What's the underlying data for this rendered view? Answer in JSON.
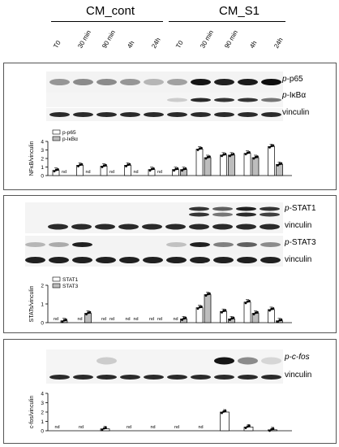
{
  "header": {
    "group_control": "CM_cont",
    "group_s1": "CM_S1",
    "timepoints": [
      "T0",
      "30 min",
      "90 min",
      "4h",
      "24h",
      "T0",
      "30 min",
      "90 min",
      "4h",
      "24h"
    ]
  },
  "panel1": {
    "labels": [
      {
        "prefix": "p-",
        "name": "p65"
      },
      {
        "prefix": "p-",
        "name": "IκBα"
      },
      {
        "prefix": "",
        "name": "vinculin"
      }
    ]
  },
  "panel2": {
    "labels": [
      {
        "prefix": "p-",
        "name": "STAT1"
      },
      {
        "prefix": "",
        "name": "vinculin"
      },
      {
        "prefix": "p-",
        "name": "STAT3"
      },
      {
        "prefix": "",
        "name": "vinculin"
      }
    ]
  },
  "panel3": {
    "labels": [
      {
        "prefix": "p-",
        "name": "c-fos"
      },
      {
        "prefix": "",
        "name": "vinculin"
      }
    ]
  },
  "chart_data": [
    {
      "type": "bar",
      "ylabel": "NFκB/vinculin",
      "ylim": [
        0,
        4
      ],
      "yticks": [
        0,
        1,
        2,
        3,
        4
      ],
      "categories": [
        "T0",
        "30 min",
        "90 min",
        "4h",
        "24h",
        "T0",
        "30 min",
        "90 min",
        "4h",
        "24h"
      ],
      "series": [
        {
          "name": "p-p65",
          "color": "#ffffff",
          "values": [
            0.6,
            1.2,
            1.1,
            1.2,
            0.7,
            0.7,
            3.1,
            2.4,
            2.6,
            3.4
          ]
        },
        {
          "name": "p-IκBα",
          "color": "#bdbdbd",
          "values": [
            null,
            null,
            null,
            null,
            null,
            0.7,
            2.1,
            2.4,
            2.1,
            1.3
          ]
        }
      ],
      "nd_label": "nd",
      "legend": "top-left"
    },
    {
      "type": "bar",
      "ylabel": "STATs/vinculin",
      "ylim": [
        0,
        2
      ],
      "yticks": [
        0,
        1,
        2
      ],
      "categories": [
        "T0",
        "30 min",
        "90 min",
        "4h",
        "24h",
        "T0",
        "30 min",
        "90 min",
        "4h",
        "24h"
      ],
      "series": [
        {
          "name": "STAT1",
          "color": "#ffffff",
          "values": [
            null,
            null,
            null,
            null,
            null,
            null,
            0.8,
            0.6,
            1.1,
            0.7
          ]
        },
        {
          "name": "STAT3",
          "color": "#bdbdbd",
          "values": [
            0.1,
            0.5,
            null,
            null,
            null,
            0.2,
            1.5,
            0.2,
            0.5,
            0.1
          ]
        }
      ],
      "nd_label": "nd",
      "legend": "top-left"
    },
    {
      "type": "bar",
      "ylabel": "c-fos/vinculin",
      "ylim": [
        0,
        4
      ],
      "yticks": [
        0,
        1,
        2,
        3,
        4
      ],
      "categories": [
        "T0",
        "30 min",
        "90 min",
        "4h",
        "24h",
        "T0",
        "30 min",
        "90 min",
        "4h",
        "24h"
      ],
      "series": [
        {
          "name": "c-fos",
          "color": "#ffffff",
          "values": [
            null,
            null,
            0.2,
            null,
            null,
            null,
            null,
            2.0,
            0.4,
            0.1
          ]
        }
      ],
      "nd_label": "nd"
    }
  ]
}
